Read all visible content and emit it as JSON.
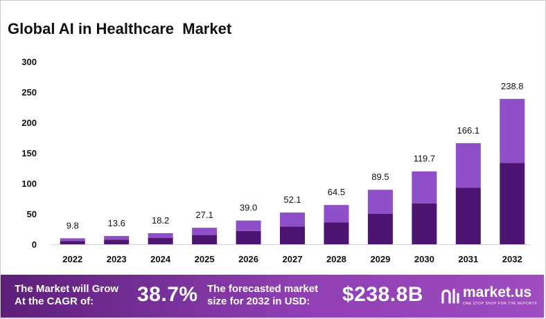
{
  "title": "Global AI in Healthcare  Market",
  "chart_data": {
    "type": "bar",
    "stacked": true,
    "title": "Global AI in Healthcare  Market",
    "xlabel": "",
    "ylabel": "",
    "categories": [
      "2022",
      "2023",
      "2024",
      "2025",
      "2026",
      "2027",
      "2028",
      "2029",
      "2030",
      "2031",
      "2032"
    ],
    "totals": [
      9.8,
      13.6,
      18.2,
      27.1,
      39.0,
      52.1,
      64.5,
      89.5,
      119.7,
      166.1,
      238.8
    ],
    "total_labels": [
      "9.8",
      "13.6",
      "18.2",
      "27.1",
      "39.0",
      "52.1",
      "64.5",
      "89.5",
      "119.7",
      "166.1",
      "238.8"
    ],
    "series": [
      {
        "values": [
          5.5,
          7.6,
          10.2,
          15.2,
          21.8,
          29.2,
          36.1,
          50.1,
          67.0,
          93.0,
          133.7
        ]
      },
      {
        "values": [
          4.3,
          6.0,
          8.0,
          11.9,
          17.2,
          22.9,
          28.4,
          39.4,
          52.7,
          73.1,
          105.1
        ]
      }
    ],
    "ylim": [
      0,
      300
    ],
    "yticks": [
      "0",
      "50",
      "100",
      "150",
      "200",
      "250",
      "300"
    ],
    "grid": false,
    "legend": "none",
    "colors": {
      "bottom": "#4c1572",
      "top": "#8e4fc8",
      "axis": "#d0d0d0"
    }
  },
  "banner": {
    "cagr_text_line1": "The Market will Grow",
    "cagr_text_line2": "At the CAGR of:",
    "cagr_value": "38.7%",
    "forecast_text_line1": "The forecasted market",
    "forecast_text_line2": "size for 2032 in USD:",
    "forecast_value": "$238.8B",
    "brand": "market.us",
    "tagline": "ONE STOP SHOP FOR THE REPORTS",
    "gradient": [
      "#5d1f7a",
      "#9e4cc0"
    ]
  }
}
